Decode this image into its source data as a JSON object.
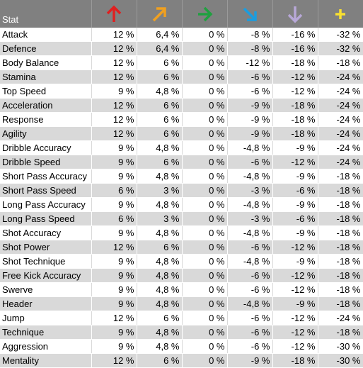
{
  "header": {
    "stat_label": "Stat",
    "columns": [
      {
        "icon": "up-arrow-icon",
        "color": "#e02020"
      },
      {
        "icon": "up-right-arrow-icon",
        "color": "#f0a020"
      },
      {
        "icon": "right-arrow-icon",
        "color": "#20a040"
      },
      {
        "icon": "down-right-arrow-icon",
        "color": "#1a9de0"
      },
      {
        "icon": "down-arrow-icon",
        "color": "#b8a8d8"
      },
      {
        "icon": "plus-icon",
        "color": "#f8e030"
      }
    ]
  },
  "rows": [
    {
      "stat": "Attack",
      "v": [
        "12 %",
        "6,4 %",
        "0 %",
        "-8 %",
        "-16 %",
        "-32 %"
      ]
    },
    {
      "stat": "Defence",
      "v": [
        "12 %",
        "6,4 %",
        "0 %",
        "-8 %",
        "-16 %",
        "-32 %"
      ]
    },
    {
      "stat": "Body Balance",
      "v": [
        "12 %",
        "6 %",
        "0 %",
        "-12 %",
        "-18 %",
        "-18 %"
      ]
    },
    {
      "stat": "Stamina",
      "v": [
        "12 %",
        "6 %",
        "0 %",
        "-6 %",
        "-12 %",
        "-24 %"
      ]
    },
    {
      "stat": "Top Speed",
      "v": [
        "9 %",
        "4,8 %",
        "0 %",
        "-6 %",
        "-12 %",
        "-24 %"
      ]
    },
    {
      "stat": "Acceleration",
      "v": [
        "12 %",
        "6 %",
        "0 %",
        "-9 %",
        "-18 %",
        "-24 %"
      ]
    },
    {
      "stat": "Response",
      "v": [
        "12 %",
        "6 %",
        "0 %",
        "-9 %",
        "-18 %",
        "-24 %"
      ]
    },
    {
      "stat": "Agility",
      "v": [
        "12 %",
        "6 %",
        "0 %",
        "-9 %",
        "-18 %",
        "-24 %"
      ]
    },
    {
      "stat": "Dribble Accuracy",
      "v": [
        "9 %",
        "4,8 %",
        "0 %",
        "-4,8 %",
        "-9 %",
        "-24 %"
      ]
    },
    {
      "stat": "Dribble Speed",
      "v": [
        "9 %",
        "6 %",
        "0 %",
        "-6 %",
        "-12 %",
        "-24 %"
      ]
    },
    {
      "stat": "Short Pass Accuracy",
      "v": [
        "9 %",
        "4,8 %",
        "0 %",
        "-4,8 %",
        "-9 %",
        "-18 %"
      ]
    },
    {
      "stat": "Short Pass Speed",
      "v": [
        "6 %",
        "3 %",
        "0 %",
        "-3 %",
        "-6 %",
        "-18 %"
      ]
    },
    {
      "stat": "Long Pass Accuracy",
      "v": [
        "9 %",
        "4,8 %",
        "0 %",
        "-4,8 %",
        "-9 %",
        "-18 %"
      ]
    },
    {
      "stat": "Long Pass Speed",
      "v": [
        "6 %",
        "3 %",
        "0 %",
        "-3 %",
        "-6 %",
        "-18 %"
      ]
    },
    {
      "stat": "Shot Accuracy",
      "v": [
        "9 %",
        "4,8 %",
        "0 %",
        "-4,8 %",
        "-9 %",
        "-18 %"
      ]
    },
    {
      "stat": "Shot Power",
      "v": [
        "12 %",
        "6 %",
        "0 %",
        "-6 %",
        "-12 %",
        "-18 %"
      ]
    },
    {
      "stat": "Shot Technique",
      "v": [
        "9 %",
        "4,8 %",
        "0 %",
        "-4,8 %",
        "-9 %",
        "-18 %"
      ]
    },
    {
      "stat": "Free Kick Accuracy",
      "v": [
        "9 %",
        "4,8 %",
        "0 %",
        "-6 %",
        "-12 %",
        "-18 %"
      ]
    },
    {
      "stat": "Swerve",
      "v": [
        "9 %",
        "4,8 %",
        "0 %",
        "-6 %",
        "-12 %",
        "-18 %"
      ]
    },
    {
      "stat": "Header",
      "v": [
        "9 %",
        "4,8 %",
        "0 %",
        "-4,8 %",
        "-9 %",
        "-18 %"
      ]
    },
    {
      "stat": "Jump",
      "v": [
        "12 %",
        "6 %",
        "0 %",
        "-6 %",
        "-12 %",
        "-24 %"
      ]
    },
    {
      "stat": "Technique",
      "v": [
        "9 %",
        "4,8 %",
        "0 %",
        "-6 %",
        "-12 %",
        "-18 %"
      ]
    },
    {
      "stat": "Aggression",
      "v": [
        "9 %",
        "4,8 %",
        "0 %",
        "-6 %",
        "-12 %",
        "-30 %"
      ]
    },
    {
      "stat": "Mentality",
      "v": [
        "12 %",
        "6 %",
        "0 %",
        "-9 %",
        "-18 %",
        "-30 %"
      ]
    }
  ]
}
